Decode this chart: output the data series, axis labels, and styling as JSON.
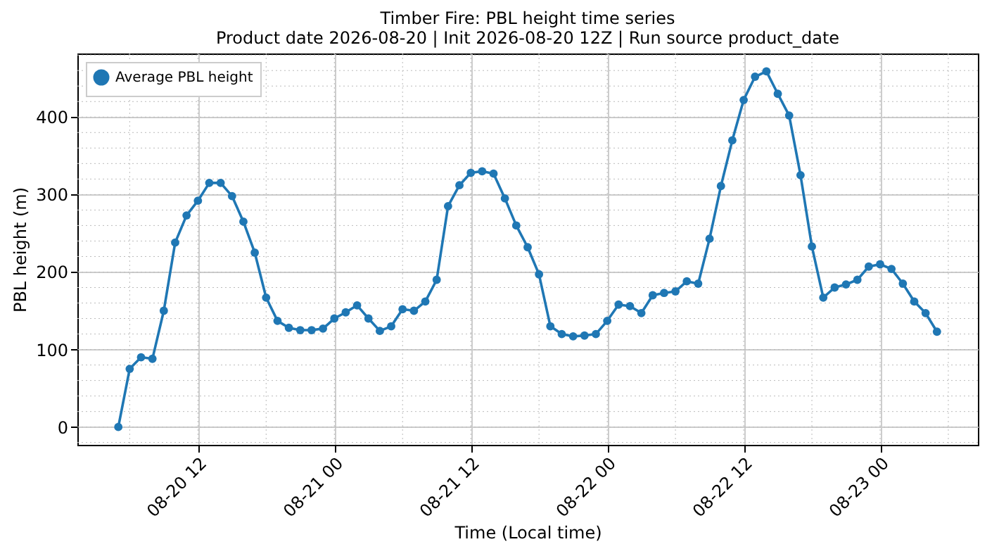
{
  "chart_data": {
    "type": "line",
    "title": "Timber Fire: PBL height time series",
    "subtitle": "Product date 2026-08-20 | Init 2026-08-20 12Z | Run source product_date",
    "xlabel": "Time (Local time)",
    "ylabel": "PBL height (m)",
    "x": [
      "2026-08-20T05:00",
      "2026-08-20T06:00",
      "2026-08-20T07:00",
      "2026-08-20T08:00",
      "2026-08-20T09:00",
      "2026-08-20T10:00",
      "2026-08-20T11:00",
      "2026-08-20T12:00",
      "2026-08-20T13:00",
      "2026-08-20T14:00",
      "2026-08-20T15:00",
      "2026-08-20T16:00",
      "2026-08-20T17:00",
      "2026-08-20T18:00",
      "2026-08-20T19:00",
      "2026-08-20T20:00",
      "2026-08-20T21:00",
      "2026-08-20T22:00",
      "2026-08-20T23:00",
      "2026-08-21T00:00",
      "2026-08-21T01:00",
      "2026-08-21T02:00",
      "2026-08-21T03:00",
      "2026-08-21T04:00",
      "2026-08-21T05:00",
      "2026-08-21T06:00",
      "2026-08-21T07:00",
      "2026-08-21T08:00",
      "2026-08-21T09:00",
      "2026-08-21T10:00",
      "2026-08-21T11:00",
      "2026-08-21T12:00",
      "2026-08-21T13:00",
      "2026-08-21T14:00",
      "2026-08-21T15:00",
      "2026-08-21T16:00",
      "2026-08-21T17:00",
      "2026-08-21T18:00",
      "2026-08-21T19:00",
      "2026-08-21T20:00",
      "2026-08-21T21:00",
      "2026-08-21T22:00",
      "2026-08-21T23:00",
      "2026-08-22T00:00",
      "2026-08-22T01:00",
      "2026-08-22T02:00",
      "2026-08-22T03:00",
      "2026-08-22T04:00",
      "2026-08-22T05:00",
      "2026-08-22T06:00",
      "2026-08-22T07:00",
      "2026-08-22T08:00",
      "2026-08-22T09:00",
      "2026-08-22T10:00",
      "2026-08-22T11:00",
      "2026-08-22T12:00",
      "2026-08-22T13:00",
      "2026-08-22T14:00",
      "2026-08-22T15:00",
      "2026-08-22T16:00",
      "2026-08-22T17:00",
      "2026-08-22T18:00",
      "2026-08-22T19:00",
      "2026-08-22T20:00",
      "2026-08-22T21:00",
      "2026-08-22T22:00",
      "2026-08-22T23:00",
      "2026-08-23T00:00",
      "2026-08-23T01:00",
      "2026-08-23T02:00",
      "2026-08-23T03:00",
      "2026-08-23T04:00",
      "2026-08-23T05:00"
    ],
    "series": [
      {
        "name": "Average PBL height",
        "color": "#1f77b4",
        "values": [
          0,
          75,
          90,
          88,
          150,
          238,
          273,
          292,
          315,
          315,
          298,
          265,
          225,
          167,
          137,
          128,
          125,
          125,
          127,
          140,
          148,
          157,
          140,
          124,
          130,
          152,
          150,
          162,
          190,
          285,
          312,
          328,
          330,
          327,
          295,
          260,
          232,
          197,
          130,
          120,
          117,
          118,
          120,
          137,
          158,
          156,
          147,
          170,
          173,
          175,
          188,
          185,
          243,
          311,
          370,
          422,
          452,
          459,
          430,
          402,
          325,
          233,
          167,
          180,
          184,
          190,
          207,
          210,
          204,
          185,
          162,
          147,
          123
        ]
      }
    ],
    "xlim": [
      "2026-08-20T01:24",
      "2026-08-23T08:36"
    ],
    "xticks": [
      {
        "value": "2026-08-20T12:00",
        "label": "08-20 12"
      },
      {
        "value": "2026-08-21T00:00",
        "label": "08-21 00"
      },
      {
        "value": "2026-08-21T12:00",
        "label": "08-21 12"
      },
      {
        "value": "2026-08-22T00:00",
        "label": "08-22 00"
      },
      {
        "value": "2026-08-22T12:00",
        "label": "08-22 12"
      },
      {
        "value": "2026-08-23T00:00",
        "label": "08-23 00"
      }
    ],
    "ylim": [
      -23,
      482
    ],
    "yticks": [
      0,
      100,
      200,
      300,
      400
    ],
    "grid": true,
    "legend": "top left",
    "marker": "circle",
    "line_style": "solid"
  }
}
